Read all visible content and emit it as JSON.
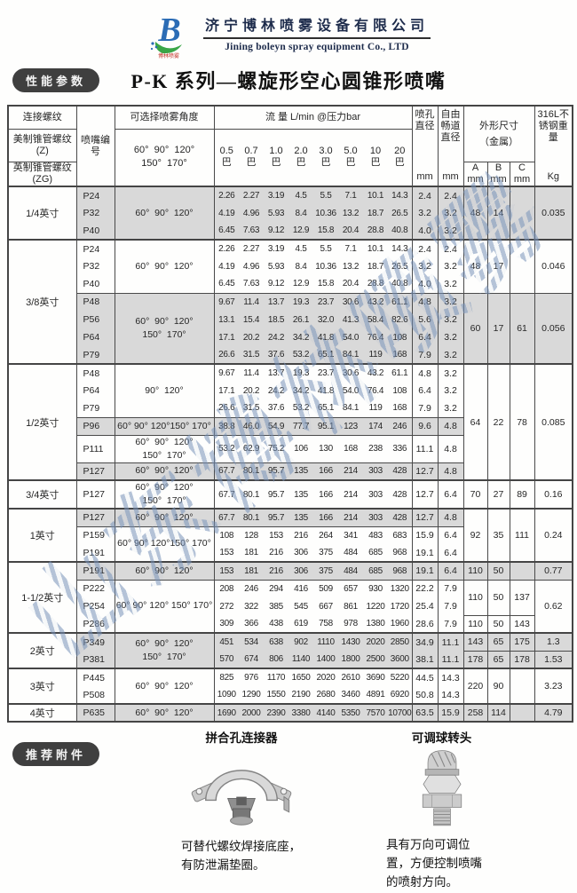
{
  "brand": {
    "logo_letter": "B",
    "logo_sub": "博林喷雾",
    "company_cn": "济宁博林喷雾设备有限公司",
    "company_en": "Jining boleyn spray equipment Co., LTD"
  },
  "badges": {
    "performance": "性能参数",
    "accessories": "推荐附件"
  },
  "title": "P-K 系列—螺旋形空心圆锥形喷嘴",
  "watermark": "山东博林喷雾",
  "colors": {
    "badge_bg": "#3f3f3f",
    "row_shade": "#d9d9d9",
    "table_border": "#4a4a4a",
    "watermark_blue": "#7e96ba",
    "logo_blue": "#2b6cb5",
    "logo_green": "#3aa648",
    "logo_red": "#c23127"
  },
  "table": {
    "header": {
      "thread_title": "连接螺纹",
      "thread_us": "美制锥管螺纹 (Z)",
      "thread_uk": "英制锥管螺纹 (ZG)",
      "nozzle_no": "喷嘴编号",
      "angle_title": "可选择喷雾角度",
      "angle_options": "60°  90°  120°\n150°  170°",
      "flow_title": "流 量  L/min @压力bar",
      "pressures": [
        "0.5",
        "0.7",
        "1.0",
        "2.0",
        "3.0",
        "5.0",
        "10",
        "20"
      ],
      "bar_label": "巴",
      "orifice_title": "喷孔直径",
      "free_passage_title": "自由畅道直径",
      "mm": "mm",
      "dims_title": "外形尺寸",
      "dims_sub": "（金属）",
      "dims_cols": [
        "A",
        "B",
        "C"
      ],
      "weight_title": "316L不锈钢重量",
      "weight_unit": "Kg"
    },
    "groups": [
      {
        "size": "1/4英寸",
        "rows": [
          {
            "id": "P24",
            "flows": [
              "2.26",
              "2.27",
              "3.19",
              "4.5",
              "5.5",
              "7.1",
              "10.1",
              "14.3"
            ],
            "orifice": "2.4",
            "free": "2.4"
          },
          {
            "id": "P32",
            "flows": [
              "4.19",
              "4.96",
              "5.93",
              "8.4",
              "10.36",
              "13.2",
              "18.7",
              "26.5"
            ],
            "orifice": "3.2",
            "free": "3.2"
          },
          {
            "id": "P40",
            "flows": [
              "6.45",
              "7.63",
              "9.12",
              "12.9",
              "15.8",
              "20.4",
              "28.8",
              "40.8"
            ],
            "orifice": "4.0",
            "free": "3.2"
          }
        ],
        "blocks": [
          {
            "start": 0,
            "len": 3,
            "angle": [
              "60°  90°  120°"
            ],
            "shaded": true
          }
        ],
        "dims": [
          {
            "start": 0,
            "len": 3,
            "a": "48",
            "b": "14",
            "c": "",
            "kg": "0.035",
            "shaded": true
          }
        ]
      },
      {
        "size": "3/8英寸",
        "rows": [
          {
            "id": "P24",
            "flows": [
              "2.26",
              "2.27",
              "3.19",
              "4.5",
              "5.5",
              "7.1",
              "10.1",
              "14.3"
            ],
            "orifice": "2.4",
            "free": "2.4"
          },
          {
            "id": "P32",
            "flows": [
              "4.19",
              "4.96",
              "5.93",
              "8.4",
              "10.36",
              "13.2",
              "18.7",
              "26.5"
            ],
            "orifice": "3.2",
            "free": "3.2"
          },
          {
            "id": "P40",
            "flows": [
              "6.45",
              "7.63",
              "9.12",
              "12.9",
              "15.8",
              "20.4",
              "28.8",
              "40.8"
            ],
            "orifice": "4.0",
            "free": "3.2"
          },
          {
            "id": "P48",
            "flows": [
              "9.67",
              "11.4",
              "13.7",
              "19.3",
              "23.7",
              "30.6",
              "43.2",
              "61.1"
            ],
            "orifice": "4.8",
            "free": "3.2"
          },
          {
            "id": "P56",
            "flows": [
              "13.1",
              "15.4",
              "18.5",
              "26.1",
              "32.0",
              "41.3",
              "58.4",
              "82.6"
            ],
            "orifice": "5.6",
            "free": "3.2"
          },
          {
            "id": "P64",
            "flows": [
              "17.1",
              "20.2",
              "24.2",
              "34.2",
              "41.8",
              "54.0",
              "76.4",
              "108"
            ],
            "orifice": "6.4",
            "free": "3.2"
          },
          {
            "id": "P79",
            "flows": [
              "26.6",
              "31.5",
              "37.6",
              "53.2",
              "65.1",
              "84.1",
              "119",
              "168"
            ],
            "orifice": "7.9",
            "free": "3.2"
          }
        ],
        "blocks": [
          {
            "start": 0,
            "len": 3,
            "angle": [
              "60°  90°  120°"
            ],
            "shaded": false
          },
          {
            "start": 3,
            "len": 4,
            "angle": [
              "60°  90°  120°",
              "150°  170°"
            ],
            "shaded": true
          }
        ],
        "dims": [
          {
            "start": 0,
            "len": 3,
            "a": "48",
            "b": "17",
            "c": "",
            "kg": "0.046",
            "shaded": false
          },
          {
            "start": 3,
            "len": 4,
            "a": "60",
            "b": "17",
            "c": "61",
            "kg": "0.056",
            "shaded": true
          }
        ]
      },
      {
        "size": "1/2英寸",
        "rows": [
          {
            "id": "P48",
            "flows": [
              "9.67",
              "11.4",
              "13.7",
              "19.3",
              "23.7",
              "30.6",
              "43.2",
              "61.1"
            ],
            "orifice": "4.8",
            "free": "3.2"
          },
          {
            "id": "P64",
            "flows": [
              "17.1",
              "20.2",
              "24.2",
              "34.2",
              "41.8",
              "54.0",
              "76.4",
              "108"
            ],
            "orifice": "6.4",
            "free": "3.2"
          },
          {
            "id": "P79",
            "flows": [
              "26.6",
              "31.5",
              "37.6",
              "53.2",
              "65.1",
              "84.1",
              "119",
              "168"
            ],
            "orifice": "7.9",
            "free": "3.2"
          },
          {
            "id": "P96",
            "flows": [
              "38.8",
              "46.0",
              "54.9",
              "77.7",
              "95.1",
              "123",
              "174",
              "246"
            ],
            "orifice": "9.6",
            "free": "4.8"
          },
          {
            "id": "P111",
            "flows": [
              "53.2",
              "62.9",
              "75.2",
              "106",
              "130",
              "168",
              "238",
              "336"
            ],
            "orifice": "11.1",
            "free": "4.8"
          },
          {
            "id": "P127",
            "flows": [
              "67.7",
              "80.1",
              "95.7",
              "135",
              "166",
              "214",
              "303",
              "428"
            ],
            "orifice": "12.7",
            "free": "4.8"
          }
        ],
        "blocks": [
          {
            "start": 0,
            "len": 3,
            "angle": [
              "90°  120°"
            ],
            "shaded": false
          },
          {
            "start": 3,
            "len": 1,
            "angle": [
              "60° 90° 120°150° 170°"
            ],
            "shaded": true
          },
          {
            "start": 4,
            "len": 1,
            "angle": [
              "60°  90°  120°",
              "150°  170°"
            ],
            "shaded": false
          },
          {
            "start": 5,
            "len": 1,
            "angle": [
              "60°  90°  120°"
            ],
            "shaded": true
          }
        ],
        "dims": [
          {
            "start": 0,
            "len": 6,
            "a": "64",
            "b": "22",
            "c": "78",
            "kg": "0.085",
            "shaded": false
          }
        ]
      },
      {
        "size": "3/4英寸",
        "rows": [
          {
            "id": "P127",
            "flows": [
              "67.7",
              "80.1",
              "95.7",
              "135",
              "166",
              "214",
              "303",
              "428"
            ],
            "orifice": "12.7",
            "free": "6.4"
          }
        ],
        "blocks": [
          {
            "start": 0,
            "len": 1,
            "angle": [
              "60°  90°  120°",
              "150°  170°"
            ],
            "shaded": false
          }
        ],
        "dims": [
          {
            "start": 0,
            "len": 1,
            "a": "70",
            "b": "27",
            "c": "89",
            "kg": "0.16",
            "shaded": false
          }
        ]
      },
      {
        "size": "1英寸",
        "rows": [
          {
            "id": "P127",
            "flows": [
              "67.7",
              "80.1",
              "95.7",
              "135",
              "166",
              "214",
              "303",
              "428"
            ],
            "orifice": "12.7",
            "free": "4.8"
          },
          {
            "id": "P159",
            "flows": [
              "108",
              "128",
              "153",
              "216",
              "264",
              "341",
              "483",
              "683"
            ],
            "orifice": "15.9",
            "free": "6.4"
          },
          {
            "id": "P191",
            "flows": [
              "153",
              "181",
              "216",
              "306",
              "375",
              "484",
              "685",
              "968"
            ],
            "orifice": "19.1",
            "free": "6.4"
          }
        ],
        "blocks": [
          {
            "start": 0,
            "len": 1,
            "angle": [
              "60°  90°  120°"
            ],
            "shaded": true
          },
          {
            "start": 1,
            "len": 2,
            "angle": [
              "60° 90° 120°150° 170°"
            ],
            "shaded": false
          }
        ],
        "dims": [
          {
            "start": 0,
            "len": 3,
            "a": "92",
            "b": "35",
            "c": "111",
            "kg": "0.24",
            "shaded": false
          }
        ]
      },
      {
        "size": "1-1/2英寸",
        "rows": [
          {
            "id": "P191",
            "flows": [
              "153",
              "181",
              "216",
              "306",
              "375",
              "484",
              "685",
              "968"
            ],
            "orifice": "19.1",
            "free": "6.4"
          },
          {
            "id": "P222",
            "flows": [
              "208",
              "246",
              "294",
              "416",
              "509",
              "657",
              "930",
              "1320"
            ],
            "orifice": "22.2",
            "free": "7.9"
          },
          {
            "id": "P254",
            "flows": [
              "272",
              "322",
              "385",
              "545",
              "667",
              "861",
              "1220",
              "1720"
            ],
            "orifice": "25.4",
            "free": "7.9"
          },
          {
            "id": "P286",
            "flows": [
              "309",
              "366",
              "438",
              "619",
              "758",
              "978",
              "1380",
              "1960"
            ],
            "orifice": "28.6",
            "free": "7.9"
          }
        ],
        "blocks": [
          {
            "start": 0,
            "len": 1,
            "angle": [
              "60°  90°  120°"
            ],
            "shaded": true
          },
          {
            "start": 1,
            "len": 3,
            "angle": [
              "60° 90° 120° 150° 170°"
            ],
            "shaded": false
          }
        ],
        "dims": [
          {
            "start": 0,
            "len": 1,
            "a": "110",
            "b": "50",
            "c": "",
            "kg": "0.77",
            "shaded": true
          },
          {
            "start": 1,
            "len": 2,
            "a": "110",
            "b": "50",
            "c": "137",
            "kg": "0.62",
            "kgLen": 3,
            "shaded": false
          },
          {
            "start": 3,
            "len": 1,
            "a": "110",
            "b": "50",
            "c": "143",
            "shaded": false
          }
        ]
      },
      {
        "size": "2英寸",
        "rows": [
          {
            "id": "P349",
            "flows": [
              "451",
              "534",
              "638",
              "902",
              "1110",
              "1430",
              "2020",
              "2850"
            ],
            "orifice": "34.9",
            "free": "11.1"
          },
          {
            "id": "P381",
            "flows": [
              "570",
              "674",
              "806",
              "1140",
              "1400",
              "1800",
              "2500",
              "3600"
            ],
            "orifice": "38.1",
            "free": "11.1"
          }
        ],
        "blocks": [
          {
            "start": 0,
            "len": 2,
            "angle": [
              "60°  90°  120°",
              "150°  170°"
            ],
            "shaded": true
          }
        ],
        "dims": [
          {
            "start": 0,
            "len": 1,
            "a": "143",
            "b": "65",
            "c": "175",
            "kg": "1.3",
            "shaded": true
          },
          {
            "start": 1,
            "len": 1,
            "a": "178",
            "b": "65",
            "c": "178",
            "kg": "1.53",
            "shaded": true
          }
        ]
      },
      {
        "size": "3英寸",
        "rows": [
          {
            "id": "P445",
            "flows": [
              "825",
              "976",
              "1170",
              "1650",
              "2020",
              "2610",
              "3690",
              "5220"
            ],
            "orifice": "44.5",
            "free": "14.3"
          },
          {
            "id": "P508",
            "flows": [
              "1090",
              "1290",
              "1550",
              "2190",
              "2680",
              "3460",
              "4891",
              "6920"
            ],
            "orifice": "50.8",
            "free": "14.3"
          }
        ],
        "blocks": [
          {
            "start": 0,
            "len": 2,
            "angle": [
              "60°  90°  120°"
            ],
            "shaded": false
          }
        ],
        "dims": [
          {
            "start": 0,
            "len": 2,
            "a": "220",
            "b": "90",
            "c": "",
            "kg": "3.23",
            "shaded": false
          }
        ]
      },
      {
        "size": "4英寸",
        "rows": [
          {
            "id": "P635",
            "flows": [
              "1690",
              "2000",
              "2390",
              "3380",
              "4140",
              "5350",
              "7570",
              "10700"
            ],
            "orifice": "63.5",
            "free": "15.9"
          }
        ],
        "blocks": [
          {
            "start": 0,
            "len": 1,
            "angle": [
              "60°  90°  120°"
            ],
            "shaded": true
          }
        ],
        "dims": [
          {
            "start": 0,
            "len": 1,
            "a": "258",
            "b": "114",
            "c": "",
            "kg": "4.79",
            "shaded": true
          }
        ]
      }
    ]
  },
  "accessories": {
    "left": {
      "title": "拼合孔连接器",
      "caption_lines": [
        "可替代螺纹焊接底座，",
        "有防泄漏垫圈。"
      ]
    },
    "right": {
      "title": "可调球转头",
      "caption_lines": [
        "具有万向可调位",
        "置，方便控制喷嘴",
        "的喷射方向。"
      ]
    }
  }
}
